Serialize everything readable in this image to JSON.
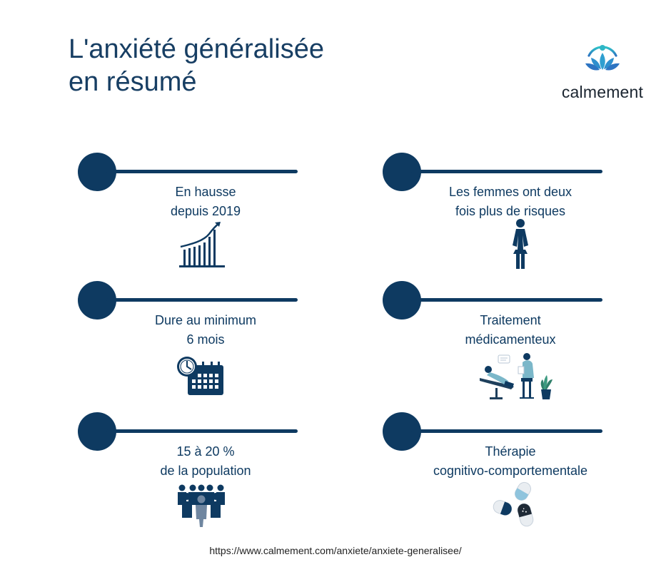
{
  "header": {
    "title_line1": "L'anxiété généralisée",
    "title_line2": "en résumé"
  },
  "brand": {
    "name": "calmement",
    "icon": "lotus-person-icon"
  },
  "items": [
    {
      "line1": "En hausse",
      "line2": "depuis 2019",
      "icon": "rising-bar-chart-icon"
    },
    {
      "line1": "Les femmes ont deux",
      "line2": "fois plus de risques",
      "icon": "woman-icon"
    },
    {
      "line1": "Dure au minimum",
      "line2": "6 mois",
      "icon": "clock-calendar-icon"
    },
    {
      "line1": "Traitement",
      "line2": "médicamenteux",
      "icon": "therapy-session-icon"
    },
    {
      "line1": "15 à 20 %",
      "line2": "de la population",
      "icon": "people-group-icon"
    },
    {
      "line1": "Thérapie",
      "line2": "cognitivo-comportementale",
      "icon": "pill-capsules-icon"
    }
  ],
  "footer": {
    "url": "https://www.calmement.com/anxiete/anxiete-generalisee/"
  },
  "colors": {
    "navy": "#0e3a61",
    "brand_teal": "#2fb6c6",
    "brand_blue": "#2e7fc4"
  }
}
